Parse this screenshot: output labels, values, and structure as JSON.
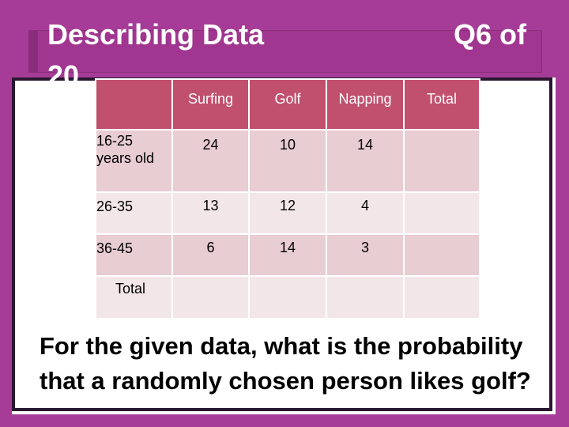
{
  "slide": {
    "title": "Describing Data 20",
    "question_number": "Q6 of",
    "question": "For the given data, what is the probability that a randomly chosen person likes golf?"
  },
  "table": {
    "columns": [
      "",
      "Surfing",
      "Golf",
      "Napping",
      "Total"
    ],
    "rows": [
      {
        "label": "16-25 years old",
        "values": [
          "24",
          "10",
          "14",
          ""
        ]
      },
      {
        "label": "26-35",
        "values": [
          "13",
          "12",
          "4",
          ""
        ]
      },
      {
        "label": "36-45",
        "values": [
          "6",
          "14",
          "3",
          ""
        ]
      },
      {
        "label": "Total",
        "values": [
          "",
          "",
          "",
          ""
        ]
      }
    ]
  },
  "colors": {
    "frame": "#a63c98",
    "header": "#c0506e",
    "row_dark": "#e8cdd3",
    "row_light": "#f3e6e9"
  }
}
